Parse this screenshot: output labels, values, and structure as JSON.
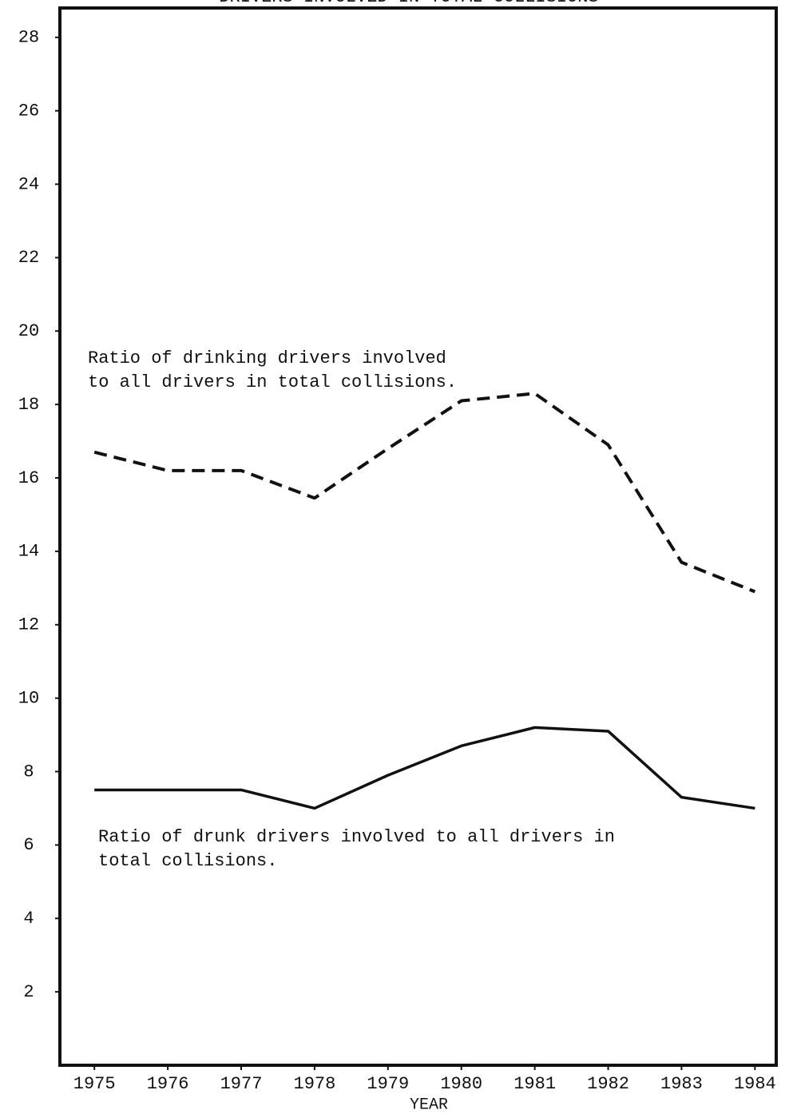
{
  "chart_data": {
    "type": "line",
    "title": "DRIVERS INVOLVED IN TOTAL COLLISIONS",
    "x_label": "YEAR",
    "x": [
      1975,
      1976,
      1977,
      1978,
      1979,
      1980,
      1981,
      1982,
      1983,
      1984
    ],
    "xlim": [
      1974.53,
      1984.29
    ],
    "xticks": [
      1975,
      1976,
      1977,
      1978,
      1979,
      1980,
      1981,
      1982,
      1983,
      1984
    ],
    "ylim": [
      0,
      28.8
    ],
    "yticks": [
      2,
      4,
      6,
      8,
      10,
      12,
      14,
      16,
      18,
      20,
      22,
      24,
      26,
      28
    ],
    "grid": false,
    "series": [
      {
        "color": "#111111",
        "dashed": true,
        "values": [
          16.7,
          16.2,
          16.2,
          15.45,
          16.8,
          18.1,
          18.3,
          16.9,
          13.7,
          12.9
        ]
      },
      {
        "color": "#111111",
        "dashed": false,
        "values": [
          7.5,
          7.5,
          7.5,
          7.0,
          7.9,
          8.7,
          9.2,
          9.1,
          7.3,
          7.0
        ]
      }
    ],
    "annotations": [
      [
        "Ratio of drinking drivers involved",
        "to all drivers in total collisions."
      ],
      [
        "Ratio of drunk drivers involved to all drivers in",
        "total collisions."
      ]
    ]
  }
}
